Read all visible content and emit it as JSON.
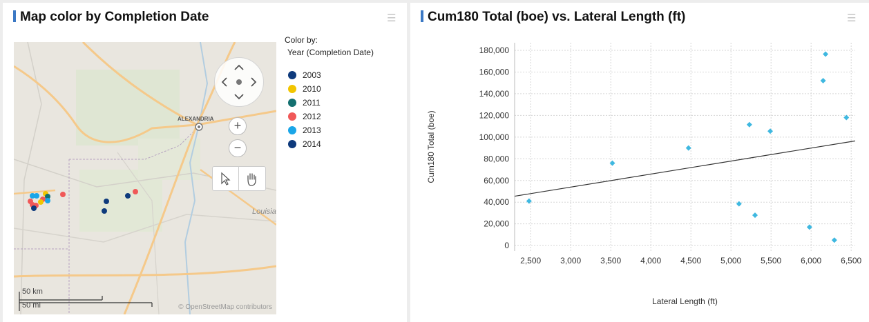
{
  "map_panel": {
    "title": "Map color by Completion Date",
    "legend_title": "Color by:",
    "legend_subtitle": "Year (Completion Date)",
    "legend_items": [
      {
        "label": "2003",
        "color": "#0e3a7c"
      },
      {
        "label": "2010",
        "color": "#f2c500"
      },
      {
        "label": "2011",
        "color": "#147070"
      },
      {
        "label": "2012",
        "color": "#f05858"
      },
      {
        "label": "2013",
        "color": "#1aa6e8"
      },
      {
        "label": "2014",
        "color": "#0e3a7c"
      }
    ],
    "place_label": "ALEXANDRIA",
    "region_label": "Louisia",
    "scale_km": "50 km",
    "scale_mi": "50 mi",
    "attribution": "© OpenStreetMap contributors",
    "zoom_in": "+",
    "zoom_out": "−"
  },
  "chart_panel": {
    "title": "Cum180 Total (boe) vs. Lateral Length (ft)"
  },
  "chart_data": {
    "type": "scatter",
    "title": "Cum180 Total (boe) vs. Lateral Length (ft)",
    "xlabel": "Lateral Length (ft)",
    "ylabel": "Cum180 Total (boe)",
    "xlim": [
      2300,
      6550
    ],
    "ylim": [
      -5000,
      187000
    ],
    "xticks": [
      2500,
      3000,
      3500,
      4000,
      4500,
      5000,
      5500,
      6000,
      6500
    ],
    "xtick_labels": [
      "2,500",
      "3,000",
      "3,500",
      "4,000",
      "4,500",
      "5,000",
      "5,500",
      "6,000",
      "6,500"
    ],
    "yticks": [
      0,
      20000,
      40000,
      60000,
      80000,
      100000,
      120000,
      140000,
      160000,
      180000
    ],
    "ytick_labels": [
      "0",
      "20,000",
      "40,000",
      "60,000",
      "80,000",
      "100,000",
      "120,000",
      "140,000",
      "160,000",
      "180,000"
    ],
    "grid": true,
    "marker_color": "#3fb8e0",
    "trendline_color": "#333333",
    "trendline": {
      "x": [
        2300,
        6550
      ],
      "y": [
        45500,
        96500
      ]
    },
    "points": [
      {
        "x": 2480,
        "y": 41000
      },
      {
        "x": 3520,
        "y": 76000
      },
      {
        "x": 4470,
        "y": 90000
      },
      {
        "x": 5100,
        "y": 38500
      },
      {
        "x": 5230,
        "y": 111500
      },
      {
        "x": 5300,
        "y": 28000
      },
      {
        "x": 5490,
        "y": 105500
      },
      {
        "x": 5980,
        "y": 17000
      },
      {
        "x": 6150,
        "y": 152000
      },
      {
        "x": 6180,
        "y": 176500
      },
      {
        "x": 6290,
        "y": 5000
      },
      {
        "x": 6440,
        "y": 118000
      }
    ]
  }
}
